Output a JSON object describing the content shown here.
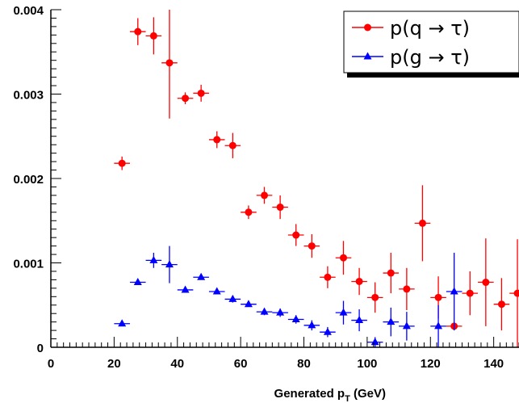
{
  "chart_data": {
    "type": "scatter",
    "title": "",
    "xlabel": "Generated p",
    "xlabel_sub": "T",
    "xlabel_unit": " (GeV)",
    "ylabel": "",
    "xlim": [
      0,
      148
    ],
    "ylim": [
      0,
      0.004
    ],
    "x_ticks": [
      0,
      20,
      40,
      60,
      80,
      100,
      120,
      140
    ],
    "x_tick_labels": [
      "0",
      "20",
      "40",
      "60",
      "80",
      "100",
      "120",
      "140"
    ],
    "y_ticks": [
      0,
      0.001,
      0.002,
      0.003,
      0.004
    ],
    "y_tick_labels": [
      "0",
      "0.001",
      "0.002",
      "0.003",
      "0.004"
    ],
    "grid": false,
    "legend_position": "top-right",
    "bin_half_width": 2.5,
    "series": [
      {
        "name": "p(q → τ)",
        "color": "#ff0000",
        "marker": "circle",
        "points": [
          {
            "x": 22.5,
            "y": 0.00218,
            "err": 8e-05
          },
          {
            "x": 27.5,
            "y": 0.00374,
            "err": 0.00016
          },
          {
            "x": 32.5,
            "y": 0.00369,
            "err": 0.00022
          },
          {
            "x": 37.5,
            "y": 0.00337,
            "err": 0.00066
          },
          {
            "x": 42.5,
            "y": 0.00295,
            "err": 7e-05
          },
          {
            "x": 47.5,
            "y": 0.00301,
            "err": 0.0001
          },
          {
            "x": 52.5,
            "y": 0.00246,
            "err": 0.0001
          },
          {
            "x": 57.5,
            "y": 0.00239,
            "err": 0.00015
          },
          {
            "x": 62.5,
            "y": 0.0016,
            "err": 8e-05
          },
          {
            "x": 67.5,
            "y": 0.0018,
            "err": 0.0001
          },
          {
            "x": 72.5,
            "y": 0.00166,
            "err": 0.00014
          },
          {
            "x": 77.5,
            "y": 0.00133,
            "err": 0.00013
          },
          {
            "x": 82.5,
            "y": 0.0012,
            "err": 0.00014
          },
          {
            "x": 87.5,
            "y": 0.00083,
            "err": 0.00013
          },
          {
            "x": 92.5,
            "y": 0.00106,
            "err": 0.0002
          },
          {
            "x": 97.5,
            "y": 0.00078,
            "err": 0.00016
          },
          {
            "x": 102.5,
            "y": 0.00059,
            "err": 0.00018
          },
          {
            "x": 107.5,
            "y": 0.00088,
            "err": 0.00024
          },
          {
            "x": 112.5,
            "y": 0.00069,
            "err": 0.00025
          },
          {
            "x": 117.5,
            "y": 0.00147,
            "err": 0.00045
          },
          {
            "x": 122.5,
            "y": 0.00059,
            "err": 0.00025
          },
          {
            "x": 127.5,
            "y": 0.00025,
            "err": 3e-05
          },
          {
            "x": 132.5,
            "y": 0.00064,
            "err": 0.00026
          },
          {
            "x": 137.5,
            "y": 0.00077,
            "err": 0.00052
          },
          {
            "x": 142.5,
            "y": 0.00051,
            "err": 0.00031
          },
          {
            "x": 147.5,
            "y": 0.00064,
            "err": 0.00064
          }
        ]
      },
      {
        "name": "p(g → τ)",
        "color": "#0000ff",
        "marker": "triangle",
        "points": [
          {
            "x": 22.5,
            "y": 0.00028,
            "err": 2e-05
          },
          {
            "x": 27.5,
            "y": 0.00077,
            "err": 3e-05
          },
          {
            "x": 32.5,
            "y": 0.00103,
            "err": 9e-05
          },
          {
            "x": 37.5,
            "y": 0.00098,
            "err": 0.00022
          },
          {
            "x": 42.5,
            "y": 0.00068,
            "err": 3e-05
          },
          {
            "x": 47.5,
            "y": 0.00083,
            "err": 3e-05
          },
          {
            "x": 52.5,
            "y": 0.00066,
            "err": 3e-05
          },
          {
            "x": 57.5,
            "y": 0.00057,
            "err": 4e-05
          },
          {
            "x": 62.5,
            "y": 0.00051,
            "err": 3e-05
          },
          {
            "x": 67.5,
            "y": 0.00042,
            "err": 4e-05
          },
          {
            "x": 72.5,
            "y": 0.00041,
            "err": 5e-05
          },
          {
            "x": 77.5,
            "y": 0.00033,
            "err": 5e-05
          },
          {
            "x": 82.5,
            "y": 0.00026,
            "err": 6e-05
          },
          {
            "x": 87.5,
            "y": 0.00018,
            "err": 6e-05
          },
          {
            "x": 92.5,
            "y": 0.00041,
            "err": 0.00014
          },
          {
            "x": 97.5,
            "y": 0.00032,
            "err": 0.00013
          },
          {
            "x": 102.5,
            "y": 6e-05,
            "err": 6e-05
          },
          {
            "x": 107.5,
            "y": 0.0003,
            "err": 0.00017
          },
          {
            "x": 112.5,
            "y": 0.00025,
            "err": 0.00017
          },
          {
            "x": 122.5,
            "y": 0.00025,
            "err": 0.00025
          },
          {
            "x": 127.5,
            "y": 0.00066,
            "err": 0.00046
          }
        ]
      }
    ]
  }
}
